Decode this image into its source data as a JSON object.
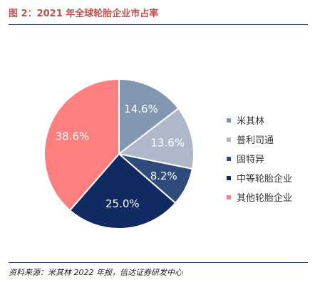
{
  "figure_title": "图 2：2021 年全球轮胎企业市占率",
  "source": "资料来源：米其林 2022 年报，信达证券研发中心",
  "chart_data": {
    "type": "pie",
    "title": "",
    "slices": [
      {
        "label": "米其林",
        "value": 14.6,
        "value_label": "14.6%",
        "color": "#8497b0"
      },
      {
        "label": "普利司通",
        "value": 13.6,
        "value_label": "13.6%",
        "color": "#adb9ca"
      },
      {
        "label": "固特异",
        "value": 8.2,
        "value_label": "8.2%",
        "color": "#2f4b7c"
      },
      {
        "label": "中等轮胎企业",
        "value": 25.0,
        "value_label": "25.0%",
        "color": "#102a62"
      },
      {
        "label": "其他轮胎企业",
        "value": 38.6,
        "value_label": "38.6%",
        "color": "#ff7f7f"
      }
    ],
    "legend_position": "right"
  }
}
